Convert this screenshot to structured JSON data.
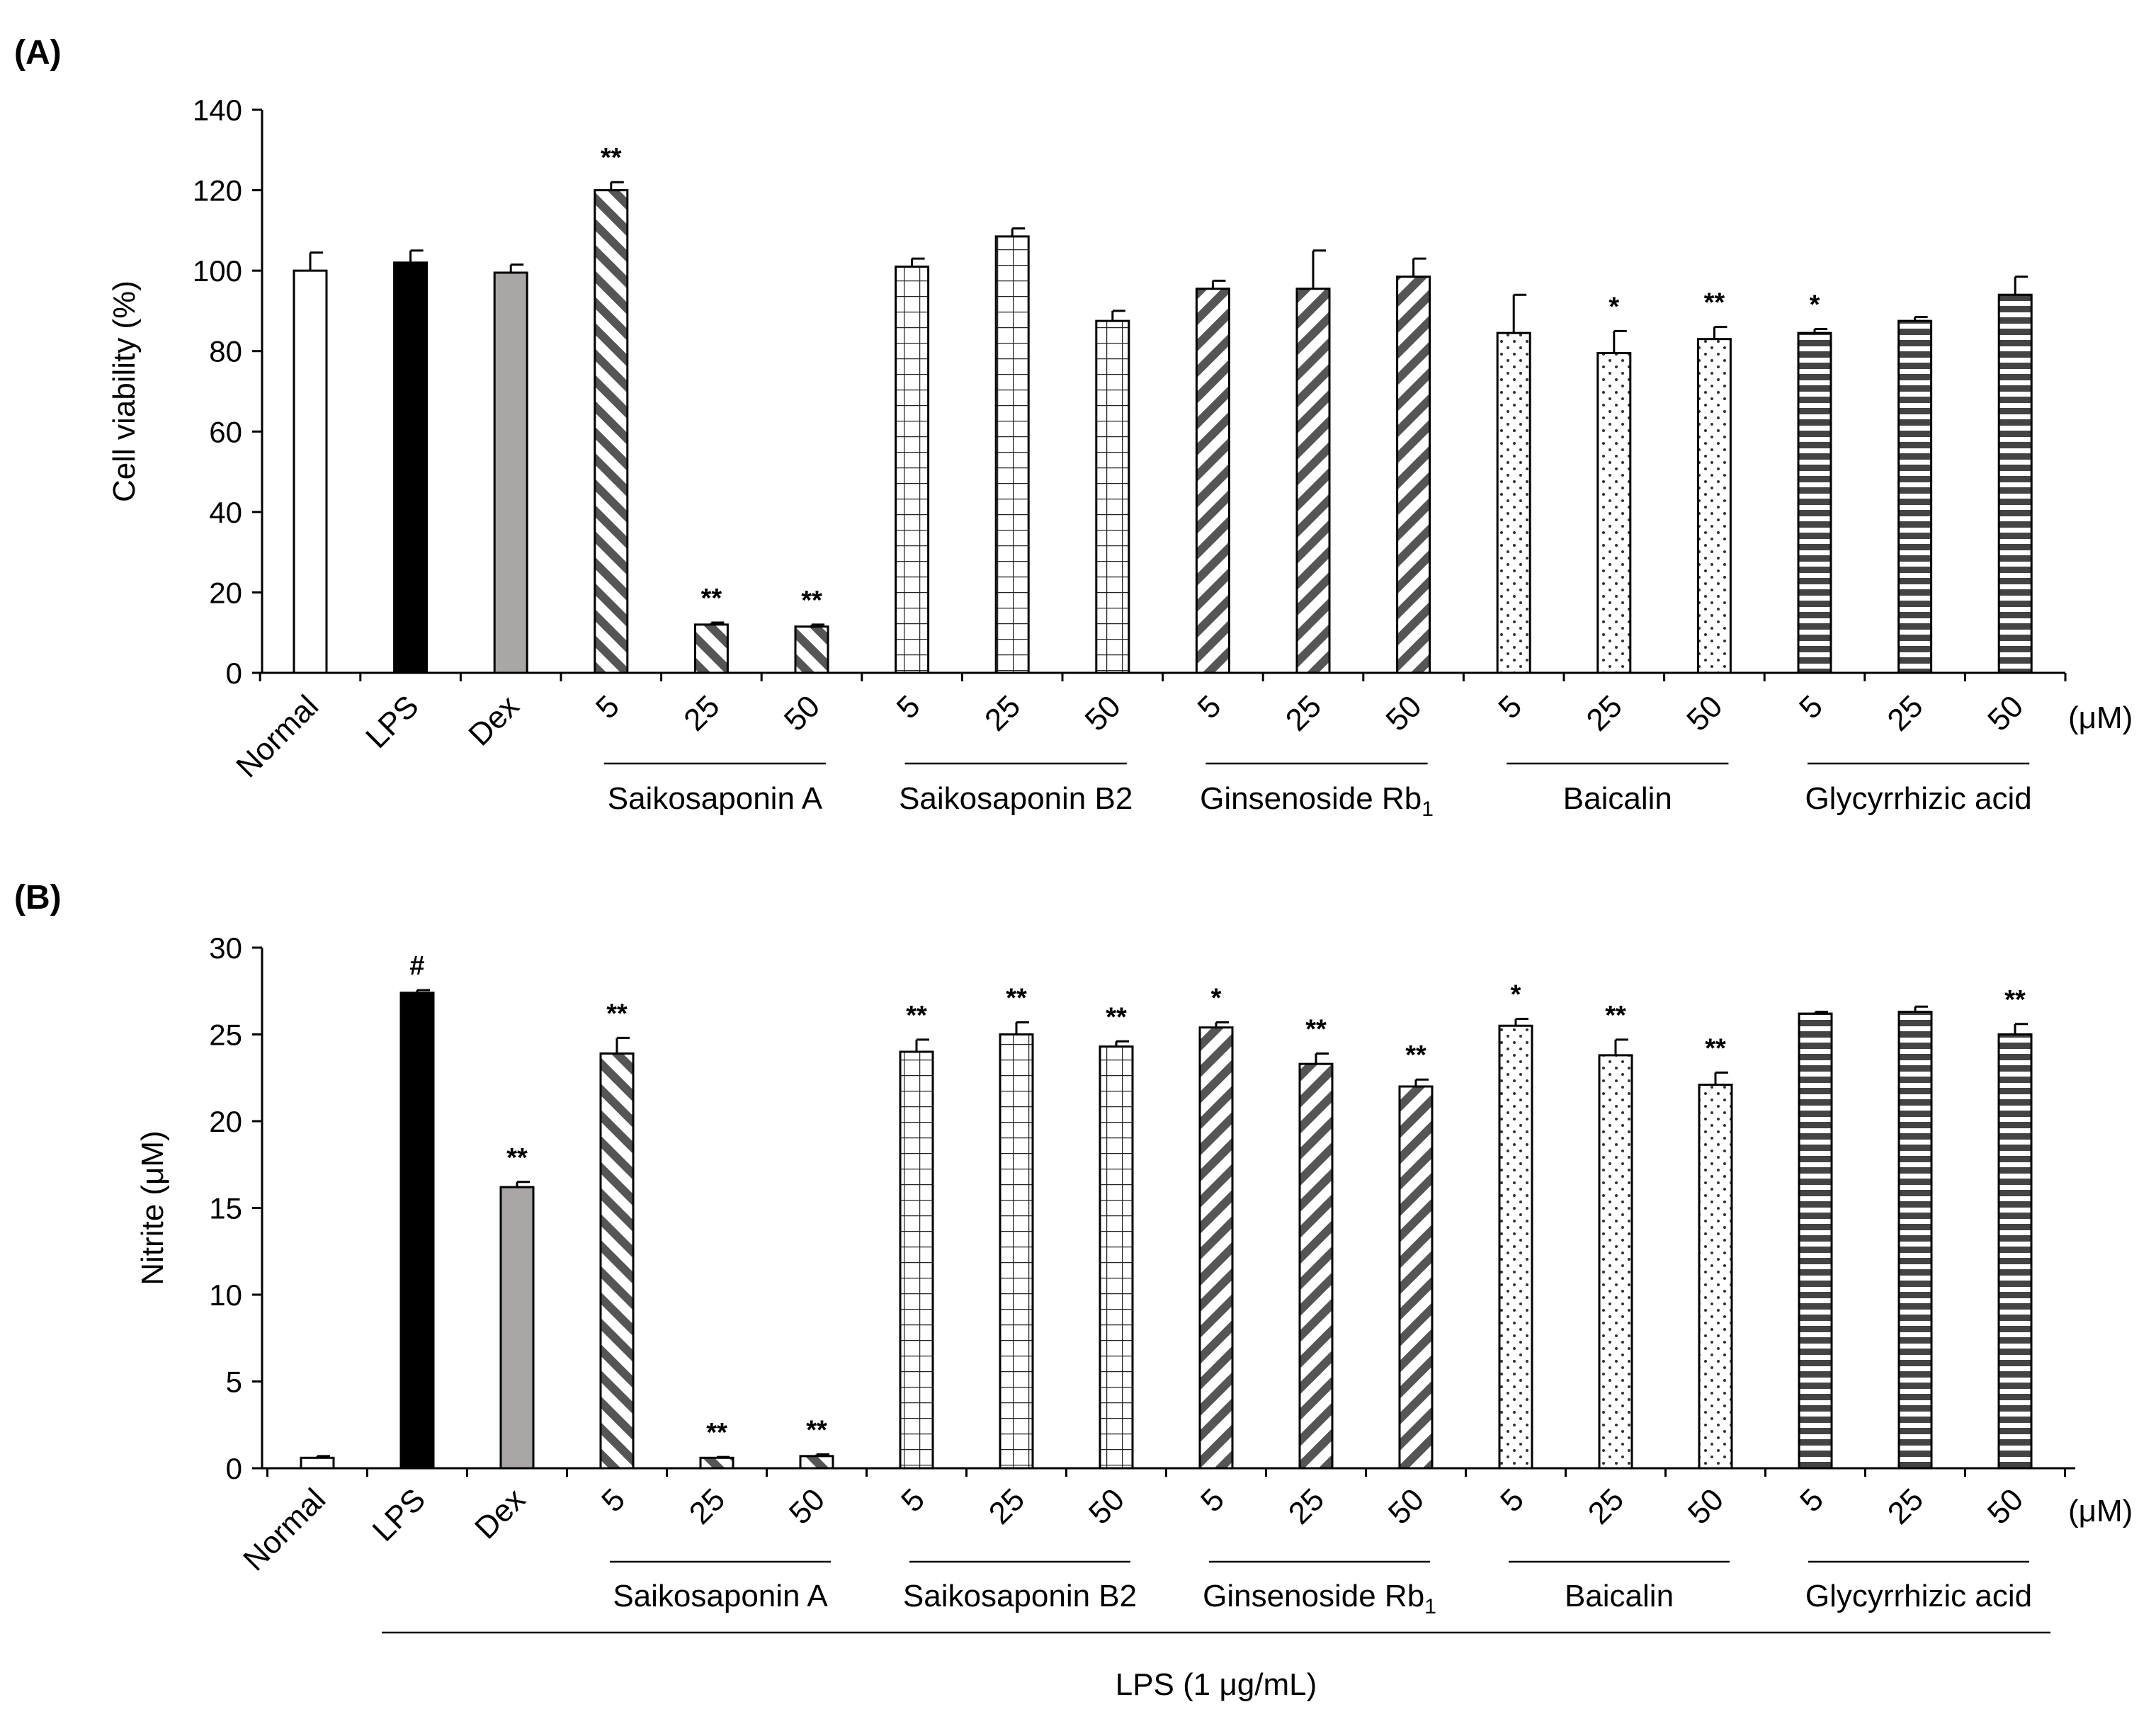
{
  "chart_data": [
    {
      "type": "bar",
      "panel_label": "(A)",
      "ylabel": "Cell viability (%)",
      "ylim": [
        0,
        140
      ],
      "yticks": [
        0,
        20,
        40,
        60,
        80,
        100,
        120,
        140
      ],
      "unit_label": "(μM)",
      "categories": [
        "Normal",
        "LPS",
        "Dex",
        "5",
        "25",
        "50",
        "5",
        "25",
        "50",
        "5",
        "25",
        "50",
        "5",
        "25",
        "50",
        "5",
        "25",
        "50"
      ],
      "groups": [
        {
          "label": "Saikosaponin A",
          "start": 3,
          "end": 5
        },
        {
          "label": "Saikosaponin B2",
          "start": 6,
          "end": 8
        },
        {
          "label": "Ginsenoside Rb",
          "label_sub": "1",
          "start": 9,
          "end": 11
        },
        {
          "label": "Baicalin",
          "start": 12,
          "end": 14
        },
        {
          "label": "Glycyrrhizic acid",
          "start": 15,
          "end": 17
        }
      ],
      "values": [
        100,
        102,
        99.5,
        120,
        12,
        11.5,
        101,
        108.5,
        87.5,
        95.5,
        95.5,
        98.5,
        84.5,
        79.5,
        83,
        84.5,
        87.5,
        94
      ],
      "errors": [
        4.5,
        3,
        2,
        2,
        0.5,
        0.5,
        2,
        2,
        2.5,
        2,
        9.5,
        4.5,
        9.5,
        5.5,
        3,
        1,
        1,
        4.5
      ],
      "annotations": [
        "",
        "",
        "",
        "**",
        "**",
        "**",
        "",
        "",
        "",
        "",
        "",
        "",
        "",
        "*",
        "**",
        "*",
        "",
        ""
      ],
      "patterns": [
        "white",
        "black",
        "gray",
        "diag",
        "diag",
        "diag",
        "grid",
        "grid",
        "grid",
        "diag2",
        "diag2",
        "diag2",
        "dots",
        "dots",
        "dots",
        "hstripe",
        "hstripe",
        "hstripe"
      ]
    },
    {
      "type": "bar",
      "panel_label": "(B)",
      "ylabel": "Nitrite (μM)",
      "ylim": [
        0,
        30
      ],
      "yticks": [
        0,
        5,
        10,
        15,
        20,
        25,
        30
      ],
      "unit_label": "(μM)",
      "categories": [
        "Normal",
        "LPS",
        "Dex",
        "5",
        "25",
        "50",
        "5",
        "25",
        "50",
        "5",
        "25",
        "50",
        "5",
        "25",
        "50",
        "5",
        "25",
        "50"
      ],
      "groups": [
        {
          "label": "Saikosaponin A",
          "start": 3,
          "end": 5
        },
        {
          "label": "Saikosaponin B2",
          "start": 6,
          "end": 8
        },
        {
          "label": "Ginsenoside Rb",
          "label_sub": "1",
          "start": 9,
          "end": 11
        },
        {
          "label": "Baicalin",
          "start": 12,
          "end": 14
        },
        {
          "label": "Glycyrrhizic acid",
          "start": 15,
          "end": 17
        }
      ],
      "bottom_bracket": {
        "label": "LPS (1 μg/mL)",
        "start": 1,
        "end": 17
      },
      "values": [
        0.6,
        27.4,
        16.2,
        23.9,
        0.6,
        0.7,
        24.0,
        25.0,
        24.3,
        25.4,
        23.3,
        22.0,
        25.5,
        23.8,
        22.1,
        26.2,
        26.3,
        25.0
      ],
      "errors": [
        0.1,
        0.15,
        0.3,
        0.9,
        0.05,
        0.1,
        0.7,
        0.7,
        0.3,
        0.3,
        0.6,
        0.4,
        0.4,
        0.9,
        0.7,
        0.1,
        0.3,
        0.6
      ],
      "annotations": [
        "",
        "#",
        "**",
        "**",
        "**",
        "**",
        "**",
        "**",
        "**",
        "*",
        "**",
        "**",
        "*",
        "**",
        "**",
        "",
        "",
        "**"
      ],
      "patterns": [
        "white",
        "black",
        "gray",
        "diag",
        "diag",
        "diag",
        "grid",
        "grid",
        "grid",
        "diag2",
        "diag2",
        "diag2",
        "dots",
        "dots",
        "dots",
        "hstripe",
        "hstripe",
        "hstripe"
      ]
    }
  ]
}
